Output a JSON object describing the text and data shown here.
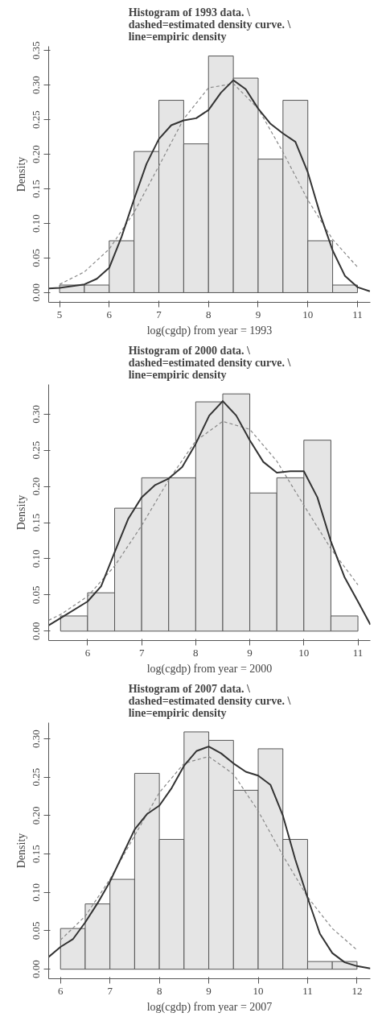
{
  "chart_data": [
    {
      "type": "histogram",
      "title": "Histogram of 1993 data. \\\ndashed=estimated density curve. \\\nline=empiric density",
      "xlabel": "log(cgdp) from year = 1993",
      "ylabel": "Density",
      "bins": [
        5,
        5.5,
        6,
        6.5,
        7,
        7.5,
        8,
        8.5,
        9,
        9.5,
        10,
        10.5,
        11
      ],
      "values": [
        0.011,
        0.011,
        0.075,
        0.204,
        0.278,
        0.215,
        0.342,
        0.31,
        0.193,
        0.278,
        0.075,
        0.011
      ],
      "color": "#e5e5e5",
      "grid": false,
      "xlim": [
        4.78,
        11.26
      ],
      "ylim": [
        -0.014,
        0.356
      ],
      "xticks": [
        5,
        6,
        7,
        8,
        9,
        10,
        11
      ],
      "yticks": [
        {
          "value": 0,
          "label": "0.00"
        },
        {
          "value": 0.05,
          "label": "0.05"
        },
        {
          "value": 0.1,
          "label": "0.10"
        },
        {
          "value": 0.15,
          "label": "0.15"
        },
        {
          "value": 0.2,
          "label": "0.20"
        },
        {
          "value": 0.25,
          "label": "0.25"
        },
        {
          "value": 0.3,
          "label": "0.30"
        },
        {
          "value": 0.35,
          "label": "0.35"
        }
      ],
      "series": [
        {
          "type": "line",
          "line_style": "dashed",
          "color": "#888888",
          "x": [
            5,
            5.5,
            6,
            6.5,
            7,
            7.5,
            8,
            8.5,
            9,
            9.5,
            10,
            10.5,
            11
          ],
          "values": [
            0.012,
            0.03,
            0.063,
            0.116,
            0.183,
            0.251,
            0.296,
            0.302,
            0.266,
            0.203,
            0.134,
            0.077,
            0.037
          ]
        },
        {
          "type": "line",
          "line_style": "solid",
          "color": "#333333",
          "x": [
            4.78,
            5,
            5.5,
            5.75,
            6,
            6.25,
            6.5,
            6.75,
            7,
            7.25,
            7.5,
            7.75,
            8,
            8.25,
            8.5,
            8.75,
            9,
            9.25,
            9.5,
            9.75,
            10,
            10.25,
            10.5,
            10.75,
            11,
            11.25
          ],
          "values": [
            0.006,
            0.007,
            0.012,
            0.02,
            0.036,
            0.081,
            0.135,
            0.186,
            0.222,
            0.242,
            0.249,
            0.252,
            0.264,
            0.289,
            0.307,
            0.294,
            0.266,
            0.244,
            0.23,
            0.218,
            0.174,
            0.113,
            0.061,
            0.024,
            0.008,
            0.002
          ]
        }
      ]
    },
    {
      "type": "histogram",
      "title": "Histogram of 2000 data. \\\ndashed=estimated density curve. \\\nline=empiric density",
      "xlabel": "log(cgdp) from year = 2000",
      "ylabel": "Density",
      "bins": [
        5.5,
        6,
        6.5,
        7,
        7.5,
        8,
        8.5,
        9,
        9.5,
        10,
        10.5,
        11
      ],
      "values": [
        0.021,
        0.053,
        0.17,
        0.212,
        0.212,
        0.317,
        0.328,
        0.191,
        0.212,
        0.264,
        0.021
      ],
      "color": "#e5e5e5",
      "grid": false,
      "xlim": [
        5.28,
        11.23
      ],
      "ylim": [
        -0.013,
        0.341
      ],
      "xticks": [
        6,
        7,
        8,
        9,
        10,
        11
      ],
      "yticks": [
        {
          "value": 0,
          "label": "0.00"
        },
        {
          "value": 0.05,
          "label": "0.05"
        },
        {
          "value": 0.1,
          "label": "0.10"
        },
        {
          "value": 0.15,
          "label": "0.15"
        },
        {
          "value": 0.2,
          "label": "0.20"
        },
        {
          "value": 0.25,
          "label": "0.25"
        },
        {
          "value": 0.3,
          "label": "0.30"
        }
      ],
      "series": [
        {
          "type": "line",
          "line_style": "dashed",
          "color": "#888888",
          "x": [
            5.28,
            5.5,
            6,
            6.5,
            7,
            7.5,
            8,
            8.5,
            9,
            9.5,
            10,
            10.5,
            11
          ],
          "values": [
            0.015,
            0.023,
            0.048,
            0.09,
            0.146,
            0.209,
            0.263,
            0.29,
            0.279,
            0.235,
            0.174,
            0.114,
            0.064
          ]
        },
        {
          "type": "line",
          "line_style": "solid",
          "color": "#333333",
          "x": [
            5.28,
            5.5,
            6,
            6.25,
            6.5,
            6.75,
            7,
            7.25,
            7.5,
            7.75,
            8,
            8.25,
            8.5,
            8.75,
            9,
            9.25,
            9.5,
            9.75,
            10,
            10.25,
            10.5,
            10.75,
            11,
            11.23
          ],
          "values": [
            0.008,
            0.018,
            0.041,
            0.062,
            0.109,
            0.155,
            0.185,
            0.202,
            0.211,
            0.227,
            0.259,
            0.298,
            0.318,
            0.298,
            0.264,
            0.234,
            0.219,
            0.221,
            0.221,
            0.185,
            0.124,
            0.075,
            0.041,
            0.009
          ]
        }
      ]
    },
    {
      "type": "histogram",
      "title": "Histogram of 2007 data. \\\ndashed=estimated density curve. \\\nline=empiric density",
      "xlabel": "log(cgdp) from year = 2007",
      "ylabel": "Density",
      "bins": [
        6,
        6.5,
        7,
        7.5,
        8,
        8.5,
        9,
        9.5,
        10,
        10.5,
        11,
        11.5,
        12
      ],
      "values": [
        0.053,
        0.085,
        0.117,
        0.255,
        0.169,
        0.309,
        0.298,
        0.233,
        0.287,
        0.169,
        0.01,
        0.01
      ],
      "color": "#e5e5e5",
      "grid": false,
      "xlim": [
        5.76,
        12.27
      ],
      "ylim": [
        -0.0124,
        0.321
      ],
      "xticks": [
        6,
        7,
        8,
        9,
        10,
        11,
        12
      ],
      "yticks": [
        {
          "value": 0,
          "label": "0.00"
        },
        {
          "value": 0.05,
          "label": "0.05"
        },
        {
          "value": 0.1,
          "label": "0.10"
        },
        {
          "value": 0.15,
          "label": "0.15"
        },
        {
          "value": 0.2,
          "label": "0.20"
        },
        {
          "value": 0.25,
          "label": "0.25"
        },
        {
          "value": 0.3,
          "label": "0.30"
        }
      ],
      "series": [
        {
          "type": "line",
          "line_style": "dashed",
          "color": "#888888",
          "x": [
            6,
            6.5,
            7,
            7.5,
            8,
            8.5,
            9,
            9.5,
            10,
            10.5,
            11,
            11.5,
            12
          ],
          "values": [
            0.038,
            0.069,
            0.117,
            0.174,
            0.23,
            0.268,
            0.277,
            0.254,
            0.206,
            0.148,
            0.094,
            0.053,
            0.025
          ]
        },
        {
          "type": "line",
          "line_style": "solid",
          "color": "#333333",
          "x": [
            5.76,
            6,
            6.25,
            6.5,
            6.75,
            7,
            7.25,
            7.5,
            7.75,
            8,
            8.25,
            8.5,
            8.75,
            9,
            9.25,
            9.5,
            9.75,
            10,
            10.25,
            10.5,
            10.75,
            11,
            11.25,
            11.5,
            11.75,
            12,
            12.27
          ],
          "values": [
            0.016,
            0.029,
            0.039,
            0.061,
            0.086,
            0.114,
            0.148,
            0.182,
            0.202,
            0.213,
            0.236,
            0.265,
            0.284,
            0.29,
            0.281,
            0.268,
            0.257,
            0.252,
            0.24,
            0.2,
            0.143,
            0.093,
            0.046,
            0.021,
            0.009,
            0.004,
            0.001
          ]
        }
      ]
    }
  ]
}
